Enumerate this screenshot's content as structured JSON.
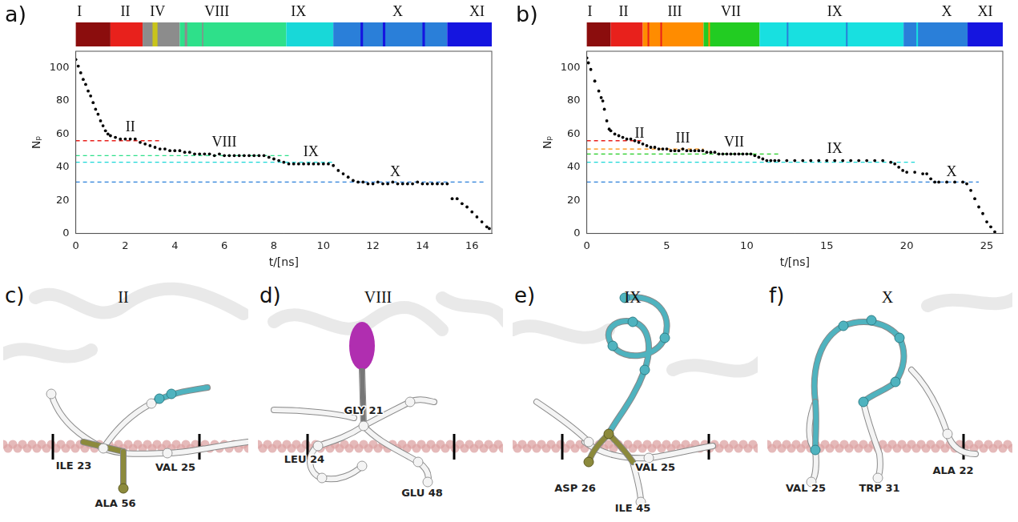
{
  "chart_data": [
    {
      "type": "scatter",
      "panel": "a)",
      "x_label": "t/[ns]",
      "y_label": "Nₚ",
      "xlim": [
        0,
        16.8
      ],
      "xticks": [
        0,
        2,
        4,
        6,
        8,
        10,
        12,
        14,
        16
      ],
      "ylim": [
        0,
        110
      ],
      "yticks": [
        0,
        20,
        40,
        60,
        80,
        100
      ],
      "grid": false,
      "color": "#000000",
      "marker": "circle",
      "x": [
        0,
        0.1,
        0.2,
        0.3,
        0.4,
        0.5,
        0.6,
        0.7,
        0.8,
        0.9,
        1.0,
        1.1,
        1.2,
        1.3,
        1.4,
        1.6,
        1.8,
        2.0,
        2.2,
        2.4,
        2.6,
        2.8,
        3.0,
        3.2,
        3.4,
        3.6,
        3.8,
        4.0,
        4.2,
        4.4,
        4.6,
        4.8,
        5.0,
        5.2,
        5.4,
        5.6,
        5.8,
        6.0,
        6.2,
        6.4,
        6.6,
        6.8,
        7.0,
        7.2,
        7.4,
        7.6,
        7.8,
        8.0,
        8.2,
        8.4,
        8.6,
        8.8,
        9.0,
        9.2,
        9.4,
        9.6,
        9.8,
        10.0,
        10.2,
        10.4,
        10.6,
        10.8,
        11.0,
        11.2,
        11.4,
        11.6,
        11.8,
        12.0,
        12.2,
        12.4,
        12.6,
        12.8,
        13.0,
        13.2,
        13.4,
        13.6,
        13.8,
        14.0,
        14.2,
        14.4,
        14.6,
        14.8,
        15.0,
        15.2,
        15.4,
        15.6,
        15.8,
        16.0,
        16.2,
        16.4,
        16.6,
        16.7
      ],
      "values": [
        105,
        101,
        97,
        93,
        90,
        86,
        83,
        79,
        75,
        72,
        68,
        65,
        62,
        60,
        59,
        58,
        57,
        57,
        57,
        57,
        55,
        54,
        53,
        52,
        51,
        51,
        50,
        50,
        50,
        49,
        49,
        48,
        48,
        48,
        48,
        47,
        48,
        47,
        47,
        47,
        47,
        47,
        47,
        47,
        47,
        47,
        46,
        45,
        44,
        43,
        42,
        42,
        42,
        42,
        42,
        42,
        42,
        42,
        42,
        41,
        38,
        36,
        34,
        32,
        31,
        31,
        30,
        30,
        31,
        30,
        30,
        31,
        30,
        30,
        30,
        30,
        31,
        30,
        30,
        30,
        30,
        30,
        30,
        21,
        21,
        18,
        16,
        13,
        10,
        7,
        4,
        3
      ],
      "reference_lines": [
        {
          "y": 56,
          "x_range": [
            0,
            3.5
          ],
          "color": "#e8211c",
          "line_style": "dashed"
        },
        {
          "y": 47,
          "x_range": [
            0,
            8.6
          ],
          "color": "#2ee08a",
          "line_style": "dashed"
        },
        {
          "y": 43,
          "x_range": [
            0,
            10.4
          ],
          "color": "#18d8d8",
          "line_style": "dashed"
        },
        {
          "y": 31,
          "x_range": [
            0,
            16.5
          ],
          "color": "#2a7fd9",
          "line_style": "dashed"
        }
      ],
      "annotations": [
        {
          "text": "II",
          "x": 2.2,
          "y": 64
        },
        {
          "text": "VIII",
          "x": 6.0,
          "y": 55
        },
        {
          "text": "IX",
          "x": 9.5,
          "y": 49
        },
        {
          "text": "X",
          "x": 12.9,
          "y": 37
        }
      ],
      "state_bar": {
        "segments": [
          {
            "start": 0,
            "end": 1.4,
            "color": "#8b0d0d"
          },
          {
            "start": 1.4,
            "end": 2.7,
            "color": "#e8211c"
          },
          {
            "start": 2.7,
            "end": 4.2,
            "color": "#8c8c8c"
          },
          {
            "start": 3.1,
            "end": 3.3,
            "color": "#c9c41a"
          },
          {
            "start": 4.2,
            "end": 8.5,
            "color": "#2ee08a"
          },
          {
            "start": 4.4,
            "end": 4.5,
            "color": "#8c8c8c"
          },
          {
            "start": 5.1,
            "end": 5.15,
            "color": "#8c8c8c"
          },
          {
            "start": 8.5,
            "end": 10.4,
            "color": "#18d8d8"
          },
          {
            "start": 10.4,
            "end": 15.0,
            "color": "#2a7fd9"
          },
          {
            "start": 11.5,
            "end": 11.6,
            "color": "#1515e0"
          },
          {
            "start": 12.4,
            "end": 12.5,
            "color": "#1515e0"
          },
          {
            "start": 14.0,
            "end": 14.1,
            "color": "#1515e0"
          },
          {
            "start": 15.0,
            "end": 16.8,
            "color": "#1515e0"
          }
        ],
        "labels": [
          {
            "text": "I",
            "x": 0.15
          },
          {
            "text": "II",
            "x": 2.0
          },
          {
            "text": "IV",
            "x": 3.3
          },
          {
            "text": "VIII",
            "x": 5.7
          },
          {
            "text": "IX",
            "x": 9.0
          },
          {
            "text": "X",
            "x": 13.0
          },
          {
            "text": "XI",
            "x": 16.2
          }
        ]
      }
    },
    {
      "type": "scatter",
      "panel": "b)",
      "x_label": "t/[ns]",
      "y_label": "Nₚ",
      "xlim": [
        0,
        26
      ],
      "xticks": [
        0,
        5,
        10,
        15,
        20,
        25
      ],
      "ylim": [
        0,
        110
      ],
      "yticks": [
        0,
        20,
        40,
        60,
        80,
        100
      ],
      "grid": false,
      "color": "#000000",
      "marker": "circle",
      "x": [
        0,
        0.1,
        0.25,
        0.5,
        0.75,
        0.9,
        1.0,
        1.1,
        1.25,
        1.4,
        1.5,
        1.75,
        2.0,
        2.25,
        2.5,
        2.75,
        3.0,
        3.25,
        3.5,
        3.75,
        4.0,
        4.25,
        4.5,
        4.75,
        5.0,
        5.25,
        5.5,
        5.75,
        6.0,
        6.25,
        6.5,
        6.75,
        7.0,
        7.25,
        7.5,
        7.75,
        8.0,
        8.25,
        8.5,
        8.75,
        9.0,
        9.25,
        9.5,
        9.75,
        10.0,
        10.25,
        10.5,
        10.75,
        11.0,
        11.25,
        11.5,
        11.75,
        12.0,
        12.5,
        13.0,
        13.5,
        14.0,
        14.5,
        15.0,
        15.5,
        16.0,
        16.5,
        17.0,
        17.5,
        18.0,
        18.5,
        19.0,
        19.25,
        19.5,
        19.75,
        20.0,
        20.5,
        21.0,
        21.25,
        21.5,
        21.75,
        22.0,
        22.5,
        23.0,
        23.5,
        23.75,
        24.0,
        24.25,
        24.5,
        24.75,
        25.0,
        25.25,
        25.5
      ],
      "values": [
        106,
        103,
        99,
        92,
        86,
        82,
        80,
        75,
        68,
        63,
        62,
        60,
        59,
        58,
        57,
        57,
        56,
        55,
        54,
        53,
        52,
        52,
        51,
        51,
        51,
        50,
        50,
        50,
        51,
        50,
        50,
        50,
        50,
        50,
        49,
        49,
        49,
        48,
        48,
        48,
        48,
        48,
        48,
        48,
        48,
        48,
        47,
        46,
        45,
        44,
        44,
        44,
        44,
        44,
        44,
        44,
        44,
        44,
        44,
        44,
        44,
        44,
        44,
        44,
        44,
        44,
        43,
        42,
        40,
        38,
        37,
        37,
        36,
        36,
        33,
        31,
        31,
        31,
        31,
        31,
        30,
        26,
        21,
        16,
        12,
        7,
        4,
        1
      ],
      "reference_lines": [
        {
          "y": 56,
          "x_range": [
            0,
            3.6
          ],
          "color": "#e8211c",
          "line_style": "dashed"
        },
        {
          "y": 51,
          "x_range": [
            0,
            7.3
          ],
          "color": "#ff8c00",
          "line_style": "dashed"
        },
        {
          "y": 48,
          "x_range": [
            0,
            12.0
          ],
          "color": "#22cc22",
          "line_style": "dashed"
        },
        {
          "y": 43,
          "x_range": [
            0,
            20.5
          ],
          "color": "#18d8d8",
          "line_style": "dashed"
        },
        {
          "y": 31,
          "x_range": [
            0,
            24.5
          ],
          "color": "#2a7fd9",
          "line_style": "dashed"
        }
      ],
      "annotations": [
        {
          "text": "II",
          "x": 3.3,
          "y": 60
        },
        {
          "text": "III",
          "x": 6.0,
          "y": 57
        },
        {
          "text": "VII",
          "x": 9.2,
          "y": 55
        },
        {
          "text": "IX",
          "x": 15.5,
          "y": 51
        },
        {
          "text": "X",
          "x": 22.8,
          "y": 37
        }
      ],
      "state_bar": {
        "segments": [
          {
            "start": 0,
            "end": 1.5,
            "color": "#8b0d0d"
          },
          {
            "start": 1.5,
            "end": 3.5,
            "color": "#e8211c"
          },
          {
            "start": 3.5,
            "end": 7.3,
            "color": "#ff8c00"
          },
          {
            "start": 3.8,
            "end": 3.9,
            "color": "#e8211c"
          },
          {
            "start": 4.6,
            "end": 4.7,
            "color": "#e8211c"
          },
          {
            "start": 7.3,
            "end": 10.8,
            "color": "#22cc22"
          },
          {
            "start": 7.6,
            "end": 7.7,
            "color": "#ff8c00"
          },
          {
            "start": 10.8,
            "end": 19.8,
            "color": "#18e0e0"
          },
          {
            "start": 12.5,
            "end": 12.6,
            "color": "#2a7fd9"
          },
          {
            "start": 16.2,
            "end": 16.3,
            "color": "#2a7fd9"
          },
          {
            "start": 19.8,
            "end": 23.8,
            "color": "#2a7fd9"
          },
          {
            "start": 20.6,
            "end": 20.7,
            "color": "#18e0e0"
          },
          {
            "start": 23.8,
            "end": 26,
            "color": "#1515e0"
          }
        ],
        "labels": [
          {
            "text": "I",
            "x": 0.2
          },
          {
            "text": "II",
            "x": 2.3
          },
          {
            "text": "III",
            "x": 5.5
          },
          {
            "text": "VII",
            "x": 9.0
          },
          {
            "text": "IX",
            "x": 15.5
          },
          {
            "text": "X",
            "x": 22.5
          },
          {
            "text": "XI",
            "x": 24.9
          }
        ]
      }
    }
  ],
  "structures": [
    {
      "panel": "c)",
      "title": "II",
      "residues": [
        "ILE 23",
        "ALA 56",
        "VAL 25"
      ]
    },
    {
      "panel": "d)",
      "title": "VIII",
      "residues": [
        "GLY 21",
        "LEU 24",
        "GLU 48"
      ]
    },
    {
      "panel": "e)",
      "title": "IX",
      "residues": [
        "ASP 26",
        "VAL 25",
        "ILE 45"
      ]
    },
    {
      "panel": "f)",
      "title": "X",
      "residues": [
        "VAL 25",
        "TRP 31",
        "ALA 22"
      ]
    }
  ]
}
